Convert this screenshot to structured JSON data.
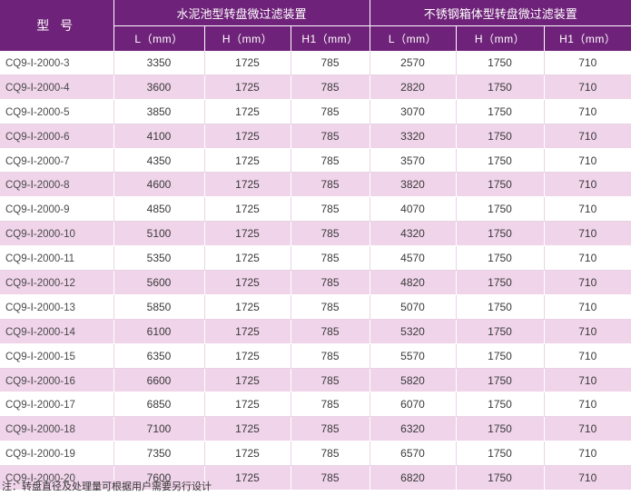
{
  "header": {
    "model_label": "型 号",
    "group1_title": "水泥池型转盘微过滤装置",
    "group2_title": "不锈钢箱体型转盘微过滤装置",
    "group1_columns": [
      "L（mm）",
      "H（mm）",
      "H1（mm）"
    ],
    "group2_columns": [
      "L（mm）",
      "H（mm）",
      "H1（mm）"
    ]
  },
  "rows": [
    {
      "model": "CQ9-Ⅰ-2000-3",
      "c_L": "3350",
      "c_H": "1725",
      "c_H1": "785",
      "s_L": "2570",
      "s_H": "1750",
      "s_H1": "710"
    },
    {
      "model": "CQ9-Ⅰ-2000-4",
      "c_L": "3600",
      "c_H": "1725",
      "c_H1": "785",
      "s_L": "2820",
      "s_H": "1750",
      "s_H1": "710"
    },
    {
      "model": "CQ9-Ⅰ-2000-5",
      "c_L": "3850",
      "c_H": "1725",
      "c_H1": "785",
      "s_L": "3070",
      "s_H": "1750",
      "s_H1": "710"
    },
    {
      "model": "CQ9-Ⅰ-2000-6",
      "c_L": "4100",
      "c_H": "1725",
      "c_H1": "785",
      "s_L": "3320",
      "s_H": "1750",
      "s_H1": "710"
    },
    {
      "model": "CQ9-Ⅰ-2000-7",
      "c_L": "4350",
      "c_H": "1725",
      "c_H1": "785",
      "s_L": "3570",
      "s_H": "1750",
      "s_H1": "710"
    },
    {
      "model": "CQ9-Ⅰ-2000-8",
      "c_L": "4600",
      "c_H": "1725",
      "c_H1": "785",
      "s_L": "3820",
      "s_H": "1750",
      "s_H1": "710"
    },
    {
      "model": "CQ9-Ⅰ-2000-9",
      "c_L": "4850",
      "c_H": "1725",
      "c_H1": "785",
      "s_L": "4070",
      "s_H": "1750",
      "s_H1": "710"
    },
    {
      "model": "CQ9-Ⅰ-2000-10",
      "c_L": "5100",
      "c_H": "1725",
      "c_H1": "785",
      "s_L": "4320",
      "s_H": "1750",
      "s_H1": "710"
    },
    {
      "model": "CQ9-Ⅰ-2000-11",
      "c_L": "5350",
      "c_H": "1725",
      "c_H1": "785",
      "s_L": "4570",
      "s_H": "1750",
      "s_H1": "710"
    },
    {
      "model": "CQ9-Ⅰ-2000-12",
      "c_L": "5600",
      "c_H": "1725",
      "c_H1": "785",
      "s_L": "4820",
      "s_H": "1750",
      "s_H1": "710"
    },
    {
      "model": "CQ9-Ⅰ-2000-13",
      "c_L": "5850",
      "c_H": "1725",
      "c_H1": "785",
      "s_L": "5070",
      "s_H": "1750",
      "s_H1": "710"
    },
    {
      "model": "CQ9-Ⅰ-2000-14",
      "c_L": "6100",
      "c_H": "1725",
      "c_H1": "785",
      "s_L": "5320",
      "s_H": "1750",
      "s_H1": "710"
    },
    {
      "model": "CQ9-Ⅰ-2000-15",
      "c_L": "6350",
      "c_H": "1725",
      "c_H1": "785",
      "s_L": "5570",
      "s_H": "1750",
      "s_H1": "710"
    },
    {
      "model": "CQ9-Ⅰ-2000-16",
      "c_L": "6600",
      "c_H": "1725",
      "c_H1": "785",
      "s_L": "5820",
      "s_H": "1750",
      "s_H1": "710"
    },
    {
      "model": "CQ9-Ⅰ-2000-17",
      "c_L": "6850",
      "c_H": "1725",
      "c_H1": "785",
      "s_L": "6070",
      "s_H": "1750",
      "s_H1": "710"
    },
    {
      "model": "CQ9-Ⅰ-2000-18",
      "c_L": "7100",
      "c_H": "1725",
      "c_H1": "785",
      "s_L": "6320",
      "s_H": "1750",
      "s_H1": "710"
    },
    {
      "model": "CQ9-Ⅰ-2000-19",
      "c_L": "7350",
      "c_H": "1725",
      "c_H1": "785",
      "s_L": "6570",
      "s_H": "1750",
      "s_H1": "710"
    },
    {
      "model": "CQ9-Ⅰ-2000-20",
      "c_L": "7600",
      "c_H": "1725",
      "c_H1": "785",
      "s_L": "6820",
      "s_H": "1750",
      "s_H1": "710"
    }
  ],
  "note": "注：转盘直径及处理量可根据用户需要另行设计",
  "colors": {
    "header_bg": "#6f2279",
    "stripe_pink": "#f0d4ea",
    "stripe_white": "#ffffff"
  }
}
